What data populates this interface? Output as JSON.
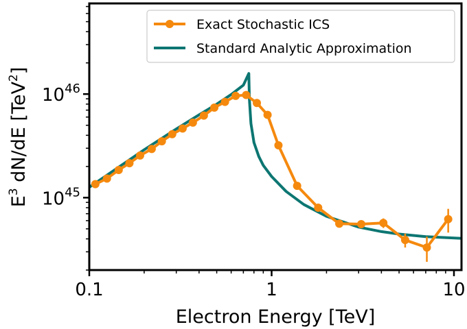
{
  "chart_data": {
    "type": "line",
    "xscale": "log",
    "yscale": "log",
    "xlim": [
      0.1,
      11
    ],
    "ylim": [
      2e+44,
      7.5e+46
    ],
    "xlabel": "Electron Energy [TeV]",
    "ylabel_main": "E",
    "ylabel_sup": "3",
    "ylabel_mid": " dN/dE [TeV",
    "ylabel_sup2": "2",
    "ylabel_end": "]",
    "xticks": [
      {
        "value": 0.1,
        "label": "0.1"
      },
      {
        "value": 1,
        "label": "1"
      },
      {
        "value": 10,
        "label": "10"
      }
    ],
    "yticks": [
      {
        "value": 1e+45,
        "base": "10",
        "exp": "45"
      },
      {
        "value": 1e+46,
        "base": "10",
        "exp": "46"
      }
    ],
    "series": [
      {
        "name": "Exact Stochastic ICS",
        "color": "#f5890e",
        "style": "line-markers",
        "points": [
          {
            "x": 0.108,
            "y": 1.35e+45,
            "err": 0
          },
          {
            "x": 0.125,
            "y": 1.53e+45,
            "err": 0
          },
          {
            "x": 0.145,
            "y": 1.85e+45,
            "err": 0
          },
          {
            "x": 0.166,
            "y": 2.15e+45,
            "err": 0
          },
          {
            "x": 0.19,
            "y": 2.55e+45,
            "err": 0
          },
          {
            "x": 0.22,
            "y": 2.95e+45,
            "err": 0
          },
          {
            "x": 0.25,
            "y": 3.5e+45,
            "err": 0
          },
          {
            "x": 0.285,
            "y": 4.1e+45,
            "err": 0
          },
          {
            "x": 0.325,
            "y": 4.65e+45,
            "err": 0
          },
          {
            "x": 0.37,
            "y": 5.3e+45,
            "err": 0
          },
          {
            "x": 0.425,
            "y": 6.2e+45,
            "err": 0
          },
          {
            "x": 0.485,
            "y": 7.4e+45,
            "err": 0
          },
          {
            "x": 0.555,
            "y": 8.4e+45,
            "err": 0
          },
          {
            "x": 0.635,
            "y": 9.6e+45,
            "err": 0
          },
          {
            "x": 0.725,
            "y": 9.8e+45,
            "err": 0
          },
          {
            "x": 0.83,
            "y": 8.2e+45,
            "err": 0
          },
          {
            "x": 0.95,
            "y": 6.3e+45,
            "err": 0
          },
          {
            "x": 1.09,
            "y": 3.2e+45,
            "err": 0
          },
          {
            "x": 1.38,
            "y": 1.3e+45,
            "err": 0
          },
          {
            "x": 1.8,
            "y": 8e+44,
            "err": 0
          },
          {
            "x": 2.35,
            "y": 5.6e+44,
            "err": 0
          },
          {
            "x": 3.1,
            "y": 5.55e+44,
            "err": 3.5e+43
          },
          {
            "x": 4.1,
            "y": 5.7e+44,
            "err": 6e+43
          },
          {
            "x": 5.4,
            "y": 3.9e+44,
            "err": 6e+43
          },
          {
            "x": 7.1,
            "y": 3.3e+44,
            "err": 9e+43
          },
          {
            "x": 9.3,
            "y": 6.2e+44,
            "err": 1.6e+44
          }
        ]
      },
      {
        "name": "Standard Analytic Approximation",
        "color": "#0d7672",
        "style": "line",
        "points": [
          {
            "x": 0.1,
            "y": 1.26e+45
          },
          {
            "x": 0.2,
            "y": 2.9e+45
          },
          {
            "x": 0.3,
            "y": 4.6e+45
          },
          {
            "x": 0.4,
            "y": 6.3e+45
          },
          {
            "x": 0.5,
            "y": 8e+45
          },
          {
            "x": 0.6,
            "y": 9.9e+45
          },
          {
            "x": 0.7,
            "y": 1.22e+46
          },
          {
            "x": 0.75,
            "y": 1.58e+46
          },
          {
            "x": 0.755,
            "y": 9e+45
          },
          {
            "x": 0.77,
            "y": 5.2e+45
          },
          {
            "x": 0.8,
            "y": 3.4e+45
          },
          {
            "x": 0.85,
            "y": 2.5e+45
          },
          {
            "x": 0.9,
            "y": 2.05e+45
          },
          {
            "x": 1.0,
            "y": 1.6e+45
          },
          {
            "x": 1.2,
            "y": 1.15e+45
          },
          {
            "x": 1.5,
            "y": 8.6e+44
          },
          {
            "x": 2.0,
            "y": 6.6e+44
          },
          {
            "x": 3.0,
            "y": 5.2e+44
          },
          {
            "x": 4.0,
            "y": 4.7e+44
          },
          {
            "x": 5.0,
            "y": 4.45e+44
          },
          {
            "x": 7.0,
            "y": 4.2e+44
          },
          {
            "x": 11.0,
            "y": 4.05e+44
          }
        ]
      }
    ],
    "legend": {
      "placement": "top-right"
    }
  }
}
